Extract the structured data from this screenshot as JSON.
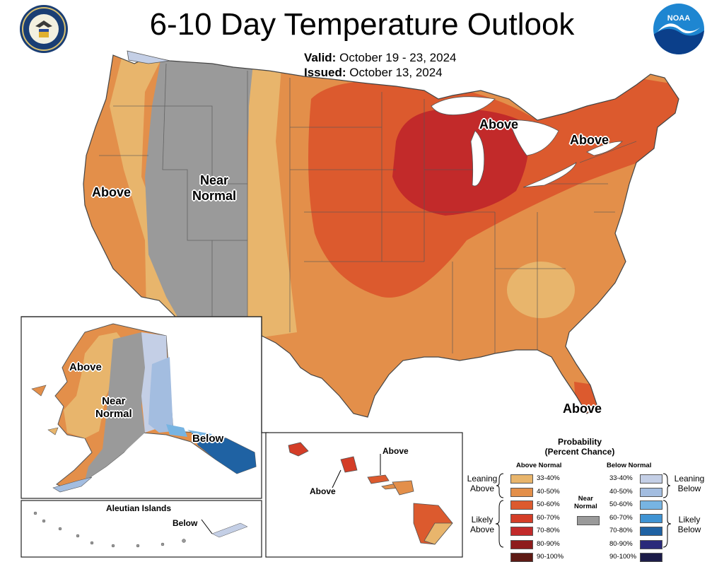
{
  "title": "6-10 Day Temperature Outlook",
  "valid_label": "Valid:",
  "valid_dates": "October 19 - 23, 2024",
  "issued_label": "Issued:",
  "issued_date": "October 13, 2024",
  "logos": {
    "left": "seal-icon",
    "right": "noaa-logo",
    "noaa_text": "NOAA",
    "seal_text": "DEPARTMENT OF COMMERCE · UNITED STATES OF AMERICA"
  },
  "map_labels": {
    "west_above": "Above",
    "near_normal_1": "Near",
    "near_normal_2": "Normal",
    "great_lakes_above": "Above",
    "northeast_above": "Above",
    "florida_above": "Above",
    "alaska_above": "Above",
    "alaska_near_1": "Near",
    "alaska_near_2": "Normal",
    "alaska_below": "Below",
    "aleutian_title": "Aleutian Islands",
    "aleutian_below": "Below",
    "hawaii_above_1": "Above",
    "hawaii_above_2": "Above"
  },
  "legend": {
    "title_line1": "Probability",
    "title_line2": "(Percent Chance)",
    "above_head": "Above Normal",
    "below_head": "Below Normal",
    "near_label_1": "Near",
    "near_label_2": "Normal",
    "leaning_above_1": "Leaning",
    "leaning_above_2": "Above",
    "likely_above_1": "Likely",
    "likely_above_2": "Above",
    "leaning_below_1": "Leaning",
    "leaning_below_2": "Below",
    "likely_below_1": "Likely",
    "likely_below_2": "Below",
    "above": [
      {
        "range": "33-40%",
        "color": "#e8b56c"
      },
      {
        "range": "40-50%",
        "color": "#e38f4a"
      },
      {
        "range": "50-60%",
        "color": "#dc5a2e"
      },
      {
        "range": "60-70%",
        "color": "#d43d27"
      },
      {
        "range": "70-80%",
        "color": "#c22a2a"
      },
      {
        "range": "80-90%",
        "color": "#8e1c1c"
      },
      {
        "range": "90-100%",
        "color": "#5e1a14"
      }
    ],
    "below": [
      {
        "range": "33-40%",
        "color": "#c4cfe6"
      },
      {
        "range": "40-50%",
        "color": "#a3bde0"
      },
      {
        "range": "50-60%",
        "color": "#77b4e2"
      },
      {
        "range": "60-70%",
        "color": "#3f93d3"
      },
      {
        "range": "70-80%",
        "color": "#1f62a3"
      },
      {
        "range": "80-90%",
        "color": "#2a2a7a"
      },
      {
        "range": "90-100%",
        "color": "#1c1c48"
      }
    ],
    "near_color": "#9a9a9a"
  },
  "colors": {
    "near_normal": "#9a9a9a",
    "above_33_40": "#e8b56c",
    "above_40_50": "#e38f4a",
    "above_50_60": "#dc5a2e",
    "above_70_80": "#c22a2a",
    "below_33_40": "#c4cfe6",
    "below_40_50": "#a3bde0",
    "below_50_60": "#77b4e2",
    "below_70_80": "#1f62a3"
  }
}
